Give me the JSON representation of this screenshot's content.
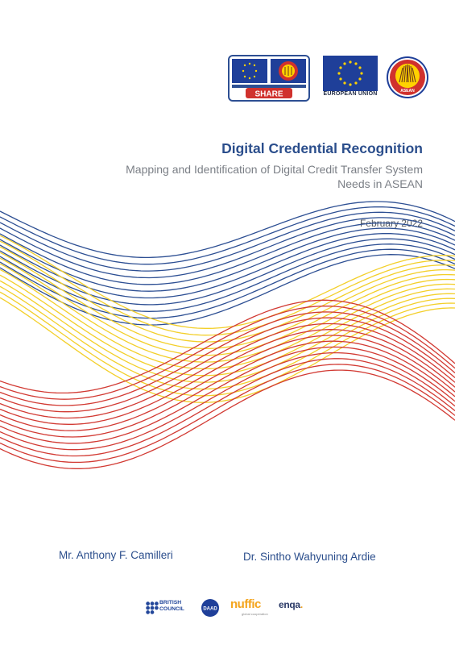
{
  "header": {
    "share_logo_text": "SHARE",
    "eu_caption": "EUROPEAN UNION",
    "asean_logo_text": "ASEAN"
  },
  "document": {
    "title": "Digital Credential Recognition",
    "subtitle_line1": "Mapping and Identification of Digital Credit Transfer System",
    "subtitle_line2": "Needs in ASEAN",
    "date": "February 2022"
  },
  "authors": [
    "Mr. Anthony F. Camilleri",
    "Dr. Sintho Wahyuning Ardie"
  ],
  "partners": {
    "british_council_line1": "BRITISH",
    "british_council_line2": "COUNCIL",
    "daad": "DAAD",
    "nuffic": "nuffic",
    "nuffic_tagline": "global cooperation",
    "enqa": "enqa"
  },
  "colors": {
    "blue": "#2d4f93",
    "yellow": "#f3cf2a",
    "red": "#d23a33"
  }
}
